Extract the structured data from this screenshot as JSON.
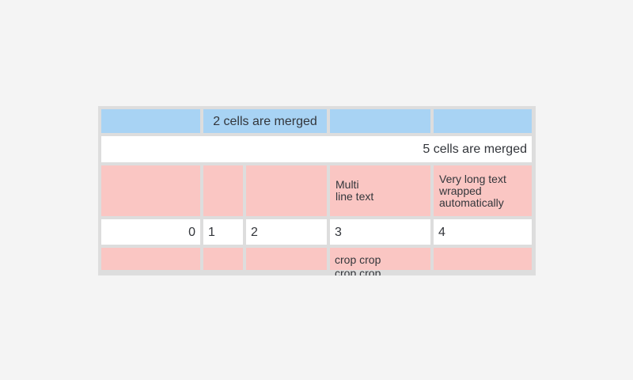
{
  "colors": {
    "page_bg": "#f4f4f4",
    "table_tray_bg": "#dddddd",
    "cell_blue": "#a8d3f4",
    "cell_pink": "#fac6c3",
    "cell_white": "#ffffff",
    "text": "#33363b"
  },
  "table": {
    "rows": [
      {
        "cells": [
          {
            "text": ""
          },
          {
            "text": "2 cells are merged"
          },
          {
            "text": ""
          },
          {
            "text": ""
          }
        ]
      },
      {
        "cells": [
          {
            "text": "5 cells are merged"
          }
        ]
      },
      {
        "cells": [
          {
            "text": ""
          },
          {
            "text": ""
          },
          {
            "text": ""
          },
          {
            "text": "Multi\nline text"
          },
          {
            "text": "Very long text wrapped automatically"
          }
        ]
      },
      {
        "cells": [
          {
            "text": "0"
          },
          {
            "text": "1"
          },
          {
            "text": "2"
          },
          {
            "text": "3"
          },
          {
            "text": "4"
          }
        ]
      },
      {
        "cells": [
          {
            "text": ""
          },
          {
            "text": ""
          },
          {
            "text": ""
          },
          {
            "text": "crop crop crop crop"
          },
          {
            "text": ""
          }
        ]
      }
    ]
  }
}
